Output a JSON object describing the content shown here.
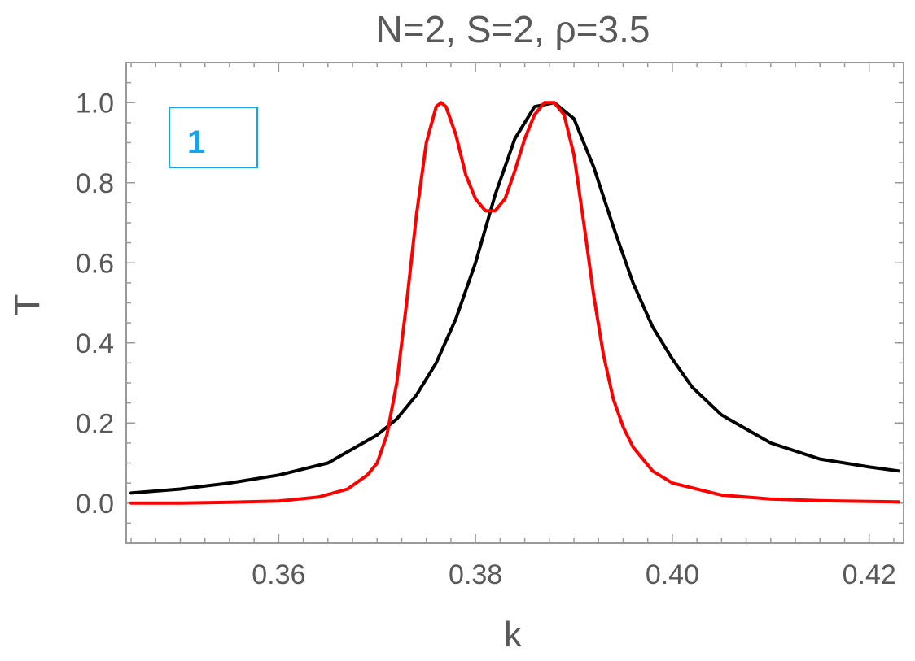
{
  "chart_data": {
    "type": "line",
    "title": "N=2, S=2, ρ=3.5",
    "xlabel": "k",
    "ylabel": "T",
    "xlim": [
      0.3445,
      0.4235
    ],
    "ylim": [
      -0.1,
      1.1
    ],
    "x_ticks": [
      "0.36",
      "0.38",
      "0.40",
      "0.42"
    ],
    "y_ticks": [
      "0.0",
      "0.2",
      "0.4",
      "0.6",
      "0.8",
      "1.0"
    ],
    "grid": false,
    "panel_label": "1",
    "series": [
      {
        "color": "#000000",
        "x": [
          0.345,
          0.35,
          0.355,
          0.36,
          0.365,
          0.37,
          0.372,
          0.374,
          0.376,
          0.378,
          0.38,
          0.382,
          0.384,
          0.386,
          0.388,
          0.39,
          0.392,
          0.394,
          0.396,
          0.398,
          0.4,
          0.402,
          0.405,
          0.41,
          0.415,
          0.42,
          0.423
        ],
        "y": [
          0.025,
          0.035,
          0.05,
          0.07,
          0.1,
          0.17,
          0.21,
          0.27,
          0.35,
          0.46,
          0.6,
          0.77,
          0.91,
          0.99,
          1.0,
          0.96,
          0.84,
          0.69,
          0.55,
          0.44,
          0.36,
          0.29,
          0.22,
          0.15,
          0.11,
          0.09,
          0.08
        ]
      },
      {
        "color": "#ff0000",
        "x": [
          0.345,
          0.35,
          0.355,
          0.36,
          0.364,
          0.367,
          0.369,
          0.37,
          0.371,
          0.372,
          0.373,
          0.374,
          0.375,
          0.376,
          0.3765,
          0.377,
          0.378,
          0.379,
          0.38,
          0.381,
          0.382,
          0.383,
          0.384,
          0.385,
          0.386,
          0.387,
          0.388,
          0.389,
          0.39,
          0.391,
          0.392,
          0.393,
          0.394,
          0.395,
          0.396,
          0.398,
          0.4,
          0.405,
          0.41,
          0.415,
          0.42,
          0.423
        ],
        "y": [
          0.0,
          0.0,
          0.002,
          0.005,
          0.015,
          0.035,
          0.07,
          0.1,
          0.17,
          0.3,
          0.5,
          0.72,
          0.9,
          0.99,
          1.0,
          0.99,
          0.92,
          0.82,
          0.76,
          0.73,
          0.73,
          0.76,
          0.83,
          0.91,
          0.97,
          1.0,
          1.0,
          0.97,
          0.87,
          0.7,
          0.52,
          0.37,
          0.26,
          0.19,
          0.14,
          0.08,
          0.05,
          0.02,
          0.01,
          0.006,
          0.004,
          0.003
        ]
      }
    ]
  }
}
